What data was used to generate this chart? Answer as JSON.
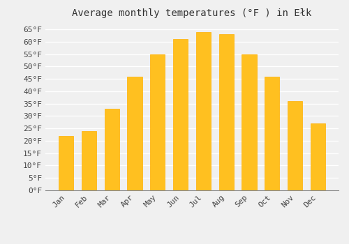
{
  "title": "Average monthly temperatures (°F ) in Ełk",
  "months": [
    "Jan",
    "Feb",
    "Mar",
    "Apr",
    "May",
    "Jun",
    "Jul",
    "Aug",
    "Sep",
    "Oct",
    "Nov",
    "Dec"
  ],
  "values": [
    22,
    24,
    33,
    46,
    55,
    61,
    64,
    63,
    55,
    46,
    36,
    27
  ],
  "bar_color": "#FFC020",
  "bar_edge_color": "#FFB000",
  "background_color": "#F0F0F0",
  "grid_color": "#FFFFFF",
  "ylim": [
    0,
    68
  ],
  "yticks": [
    0,
    5,
    10,
    15,
    20,
    25,
    30,
    35,
    40,
    45,
    50,
    55,
    60,
    65
  ],
  "title_fontsize": 10,
  "tick_fontsize": 8,
  "font_family": "monospace"
}
